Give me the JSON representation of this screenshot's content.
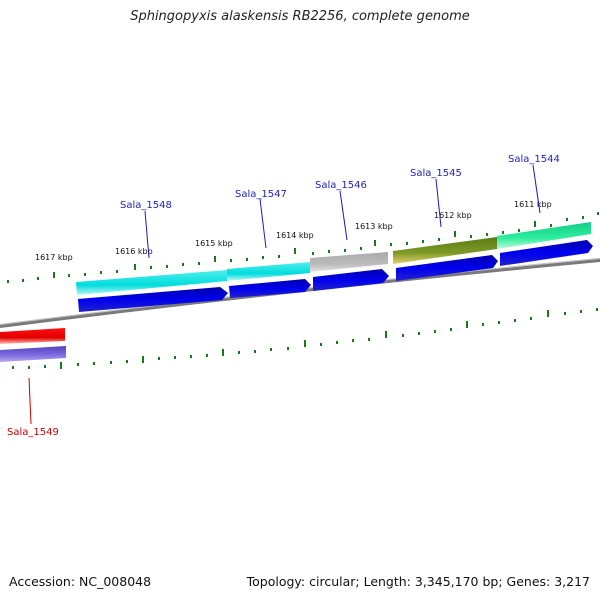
{
  "genome": {
    "title": "Sphingopyxis alaskensis RB2256, complete genome",
    "accession": "Accession: NC_008048",
    "summary": "Topology: circular; Length: 3,345,170 bp; Genes: 3,217"
  },
  "scale_labels": [
    "1617 kbp",
    "1616 kbp",
    "1615 kbp",
    "1614 kbp",
    "1613 kbp",
    "1612 kbp",
    "1611 kbp"
  ],
  "genes": [
    {
      "name": "Sala_1548",
      "color": "#2222bb"
    },
    {
      "name": "Sala_1547",
      "color": "#2222bb"
    },
    {
      "name": "Sala_1546",
      "color": "#2222bb"
    },
    {
      "name": "Sala_1545",
      "color": "#2222bb"
    },
    {
      "name": "Sala_1544",
      "color": "#2222bb"
    },
    {
      "name": "Sala_1549",
      "color": "#cc0000"
    }
  ],
  "colors": {
    "backbone": "#888888",
    "tick": "#1a7a1a",
    "cds_forward": "#0000dd",
    "cds_reverse": "#6655cc"
  }
}
